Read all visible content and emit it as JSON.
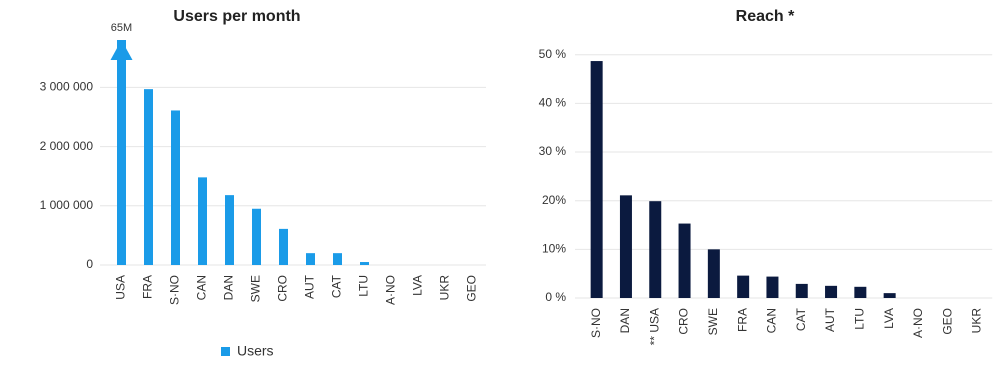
{
  "chart_data": [
    {
      "type": "bar",
      "title": "Users per month",
      "categories": [
        "USA",
        "FRA",
        "S·NO",
        "CAN",
        "DAN",
        "SWE",
        "CRO",
        "AUT",
        "CAT",
        "LTU",
        "A·NO",
        "LVA",
        "UKR",
        "GEO"
      ],
      "series": [
        {
          "name": "Users",
          "color": "#1a9be8",
          "values": [
            65000000,
            2970000,
            2610000,
            1480000,
            1180000,
            950000,
            610000,
            200000,
            200000,
            50000,
            0,
            0,
            0,
            0
          ],
          "value_labels": [
            "65M",
            null,
            null,
            null,
            null,
            null,
            null,
            null,
            null,
            null,
            null,
            null,
            null,
            null
          ]
        }
      ],
      "ylim": [
        0,
        3800000
      ],
      "yticks": [
        0,
        {
          "value": 1000000,
          "label": "1 000 000"
        },
        {
          "value": 2000000,
          "label": "2 000 000"
        },
        {
          "value": 3000000,
          "label": "3 000 000"
        }
      ],
      "grid": true,
      "legend": "bottom"
    },
    {
      "type": "bar",
      "title": "Reach *",
      "categories": [
        "S·NO",
        "DAN",
        "** USA",
        "CRO",
        "SWE",
        "FRA",
        "CAN",
        "CAT",
        "AUT",
        "LTU",
        "LVA",
        "A·NO",
        "GEO",
        "UKR"
      ],
      "series": [
        {
          "color": "#0b1a3f",
          "values": [
            48.7,
            21.1,
            19.9,
            15.3,
            10.0,
            4.6,
            4.4,
            2.9,
            2.5,
            2.3,
            1.0,
            0,
            0,
            0
          ]
        }
      ],
      "ylim": [
        0,
        52
      ],
      "yticks": [
        {
          "value": 0,
          "label": "0 %"
        },
        {
          "value": 10,
          "label": "10%"
        },
        {
          "value": 20,
          "label": "20%"
        },
        {
          "value": 30,
          "label": "30 %"
        },
        {
          "value": 40,
          "label": "40 %"
        },
        {
          "value": 50,
          "label": "50 %"
        }
      ],
      "grid": true
    }
  ]
}
